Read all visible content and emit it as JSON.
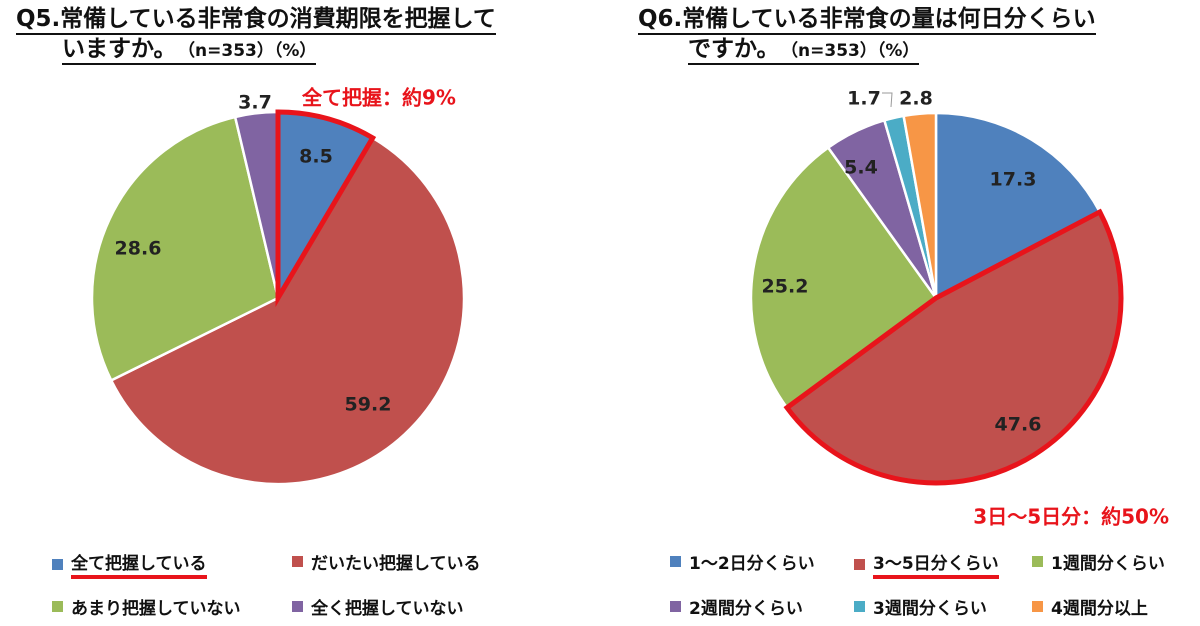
{
  "colors": {
    "blue": "#4f81bd",
    "red": "#c0504d",
    "green": "#9bbb59",
    "purple": "#8064a2",
    "teal": "#4bacc6",
    "orange": "#f79646",
    "highlight": "#e8141b"
  },
  "chart_data": [
    {
      "type": "pie",
      "title_line1": "Q5.常備している非常食の消費期限を把握して",
      "title_line2": "いますか。",
      "title_meta": "（n=353）（%）",
      "callout": "全て把握：約9%",
      "slices": [
        {
          "name": "全て把握している",
          "value": 8.5,
          "label": "8.5",
          "color": "#4f81bd",
          "highlight": true
        },
        {
          "name": "だいたい把握している",
          "value": 59.2,
          "label": "59.2",
          "color": "#c0504d",
          "highlight": false
        },
        {
          "name": "あまり把握していない",
          "value": 28.6,
          "label": "28.6",
          "color": "#9bbb59",
          "highlight": false
        },
        {
          "name": "全く把握していない",
          "value": 3.7,
          "label": "3.7",
          "color": "#8064a2",
          "highlight": false
        }
      ]
    },
    {
      "type": "pie",
      "title_line1": "Q6.常備している非常食の量は何日分くらい",
      "title_line2": "ですか。",
      "title_meta": "（n=353）（%）",
      "callout": "3日～5日分：約50%",
      "slices": [
        {
          "name": "1～2日分くらい",
          "value": 17.3,
          "label": "17.3",
          "color": "#4f81bd",
          "highlight": false
        },
        {
          "name": "3～5日分くらい",
          "value": 47.6,
          "label": "47.6",
          "color": "#c0504d",
          "highlight": true
        },
        {
          "name": "1週間分くらい",
          "value": 25.2,
          "label": "25.2",
          "color": "#9bbb59",
          "highlight": false
        },
        {
          "name": "2週間分くらい",
          "value": 5.4,
          "label": "5.4",
          "color": "#8064a2",
          "highlight": false
        },
        {
          "name": "3週間分くらい",
          "value": 1.7,
          "label": "1.7",
          "color": "#4bacc6",
          "highlight": false
        },
        {
          "name": "4週間分以上",
          "value": 2.8,
          "label": "2.8",
          "color": "#f79646",
          "highlight": false
        }
      ]
    }
  ]
}
